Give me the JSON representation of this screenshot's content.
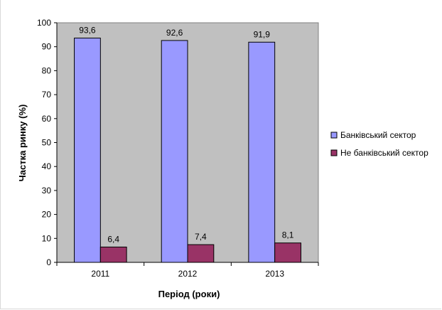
{
  "chart_data": {
    "type": "bar",
    "title": "",
    "xlabel": "Період (роки)",
    "ylabel": "Частка ринку (%)",
    "ylim": [
      0,
      100
    ],
    "yticks": [
      0,
      10,
      20,
      30,
      40,
      50,
      60,
      70,
      80,
      90,
      100
    ],
    "categories": [
      "2011",
      "2012",
      "2013"
    ],
    "series": [
      {
        "name": "Банківський сектор",
        "values": [
          93.6,
          92.6,
          91.9
        ],
        "labels": [
          "93,6",
          "92,6",
          "91,9"
        ],
        "color": "#9999ff"
      },
      {
        "name": "Не банківський сектор",
        "values": [
          6.4,
          7.4,
          8.1
        ],
        "labels": [
          "6,4",
          "7,4",
          "8,1"
        ],
        "color": "#993366"
      }
    ],
    "grid": false,
    "plot_background": "#c0c0c0",
    "legend_position": "right"
  }
}
